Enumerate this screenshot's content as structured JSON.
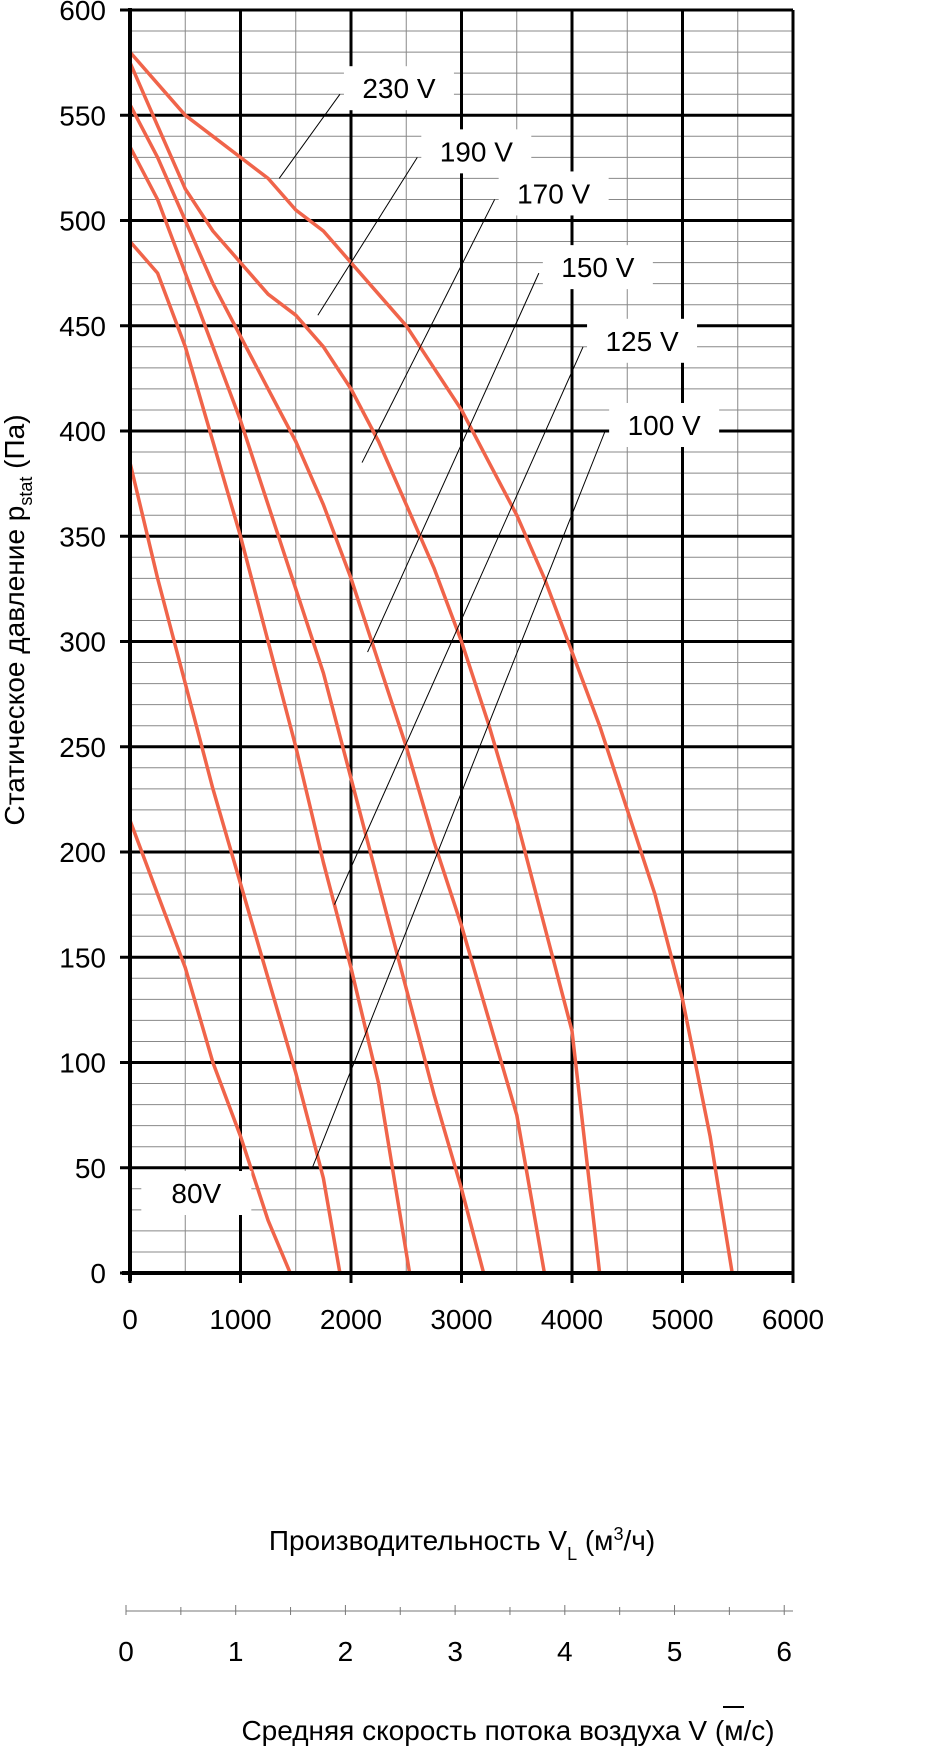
{
  "chart_data": {
    "type": "line",
    "title": "",
    "xlabel": {
      "main": "Производительность V",
      "sub": "L",
      "unit_open": " (м",
      "sup": "3",
      "unit_close": "/ч)"
    },
    "ylabel": {
      "main": "Статическое давление p",
      "sub": "stat",
      "unit": " (Па)"
    },
    "xlabel2": {
      "main": "Средняя скорость потока воздуха ",
      "symbol": "V",
      "unit": " (м/с)"
    },
    "xlim": [
      0,
      6000
    ],
    "ylim": [
      0,
      600
    ],
    "x_ticks": [
      "0",
      "1000",
      "2000",
      "3000",
      "4000",
      "5000",
      "6000"
    ],
    "y_ticks": [
      "0",
      "50",
      "100",
      "150",
      "200",
      "250",
      "300",
      "350",
      "400",
      "450",
      "500",
      "550",
      "600"
    ],
    "x2_ticks": [
      "0",
      "1",
      "2",
      "3",
      "4",
      "5",
      "6"
    ],
    "x2lim": [
      0,
      6
    ],
    "grid": true,
    "curve_color": "#f0644a",
    "series": [
      {
        "name": "80V",
        "x": [
          0,
          250,
          500,
          750,
          1000,
          1250,
          1450
        ],
        "y": [
          215,
          180,
          145,
          100,
          65,
          25,
          0
        ]
      },
      {
        "name": "100 V",
        "x": [
          0,
          250,
          500,
          750,
          1000,
          1250,
          1500,
          1750,
          1900
        ],
        "y": [
          385,
          330,
          280,
          230,
          185,
          140,
          95,
          45,
          0
        ]
      },
      {
        "name": "125 V",
        "x": [
          0,
          250,
          500,
          750,
          1000,
          1250,
          1500,
          1750,
          2000,
          2250,
          2530
        ],
        "y": [
          490,
          475,
          440,
          395,
          350,
          300,
          250,
          195,
          145,
          90,
          0
        ]
      },
      {
        "name": "150 V",
        "x": [
          0,
          250,
          500,
          750,
          1000,
          1250,
          1500,
          1750,
          2000,
          2250,
          2500,
          2750,
          3000,
          3200
        ],
        "y": [
          535,
          510,
          475,
          440,
          405,
          365,
          325,
          285,
          235,
          185,
          135,
          85,
          40,
          0
        ]
      },
      {
        "name": "170 V",
        "x": [
          0,
          250,
          500,
          750,
          1000,
          1250,
          1500,
          1750,
          2000,
          2250,
          2500,
          2750,
          3000,
          3250,
          3500,
          3750
        ],
        "y": [
          555,
          530,
          500,
          470,
          445,
          420,
          395,
          365,
          330,
          290,
          250,
          205,
          165,
          120,
          75,
          0
        ]
      },
      {
        "name": "190 V",
        "x": [
          0,
          250,
          500,
          750,
          1000,
          1250,
          1500,
          1750,
          2000,
          2250,
          2500,
          2750,
          3000,
          3250,
          3500,
          3750,
          4000,
          4250
        ],
        "y": [
          575,
          545,
          515,
          495,
          480,
          465,
          455,
          440,
          420,
          395,
          365,
          335,
          300,
          260,
          215,
          165,
          115,
          0
        ]
      },
      {
        "name": "230 V",
        "x": [
          0,
          250,
          500,
          750,
          1000,
          1250,
          1500,
          1750,
          2000,
          2250,
          2500,
          2750,
          3000,
          3250,
          3500,
          3750,
          4000,
          4250,
          4500,
          4750,
          5000,
          5250,
          5450
        ],
        "y": [
          580,
          565,
          550,
          540,
          530,
          520,
          505,
          495,
          480,
          465,
          450,
          430,
          410,
          385,
          360,
          330,
          295,
          260,
          220,
          180,
          130,
          65,
          0
        ]
      }
    ],
    "curve_labels": [
      {
        "text": "230 V",
        "leader_from": [
          1350,
          520
        ],
        "leader_to": [
          1900,
          560
        ]
      },
      {
        "text": "190 V",
        "leader_from": [
          1700,
          455
        ],
        "leader_to": [
          2600,
          530
        ]
      },
      {
        "text": "170 V",
        "leader_from": [
          2100,
          385
        ],
        "leader_to": [
          3300,
          510
        ]
      },
      {
        "text": "150 V",
        "leader_from": [
          2150,
          295
        ],
        "leader_to": [
          3700,
          475
        ]
      },
      {
        "text": "125 V",
        "leader_from": [
          1850,
          175
        ],
        "leader_to": [
          4100,
          440
        ]
      },
      {
        "text": "100 V",
        "leader_from": [
          1650,
          50
        ],
        "leader_to": [
          4300,
          400
        ]
      },
      {
        "text": "80V"
      }
    ]
  }
}
